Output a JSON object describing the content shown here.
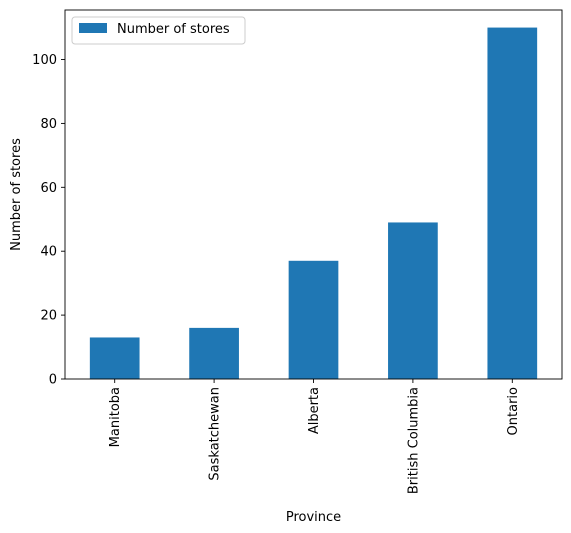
{
  "chart_data": {
    "type": "bar",
    "categories": [
      "Manitoba",
      "Saskatchewan",
      "Alberta",
      "British Columbia",
      "Ontario"
    ],
    "series": [
      {
        "name": "Number of stores",
        "values": [
          13,
          16,
          37,
          49,
          110
        ],
        "color": "#1f77b4"
      }
    ],
    "xlabel": "Province",
    "ylabel": "Number of stores",
    "ylim": [
      0,
      115.5
    ],
    "yticks": [
      0,
      20,
      40,
      60,
      80,
      100
    ],
    "grid": false,
    "legend_position": "top-left"
  }
}
